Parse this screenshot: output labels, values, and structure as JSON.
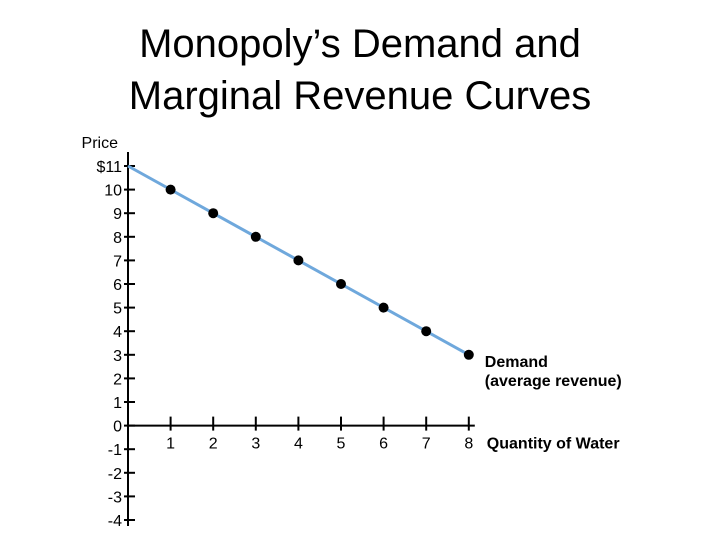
{
  "title": {
    "line1": "Monopoly’s Demand and",
    "line2": "Marginal Revenue Curves"
  },
  "chart_data": {
    "type": "line",
    "title": "Monopoly’s Demand and Marginal Revenue Curves",
    "ylabel": "Price",
    "xlabel": "Quantity of Water",
    "ylim": [
      -4,
      11
    ],
    "xlim": [
      0,
      8
    ],
    "y_ticks": [
      "$11",
      "10",
      "9",
      "8",
      "7",
      "6",
      "5",
      "4",
      "3",
      "2",
      "1",
      "0",
      "-1",
      "-2",
      "-3",
      "-4"
    ],
    "x_ticks": [
      "1",
      "2",
      "3",
      "4",
      "5",
      "6",
      "7",
      "8"
    ],
    "grid": false,
    "series": [
      {
        "name": "Demand (average revenue)",
        "label_line1": "Demand",
        "label_line2": "(average revenue)",
        "color": "#6fa8dc",
        "line_x": [
          0,
          8
        ],
        "line_y": [
          11,
          3
        ],
        "points_x": [
          1,
          2,
          3,
          4,
          5,
          6,
          7,
          8
        ],
        "points_y": [
          10,
          9,
          8,
          7,
          6,
          5,
          4,
          3
        ]
      }
    ]
  }
}
